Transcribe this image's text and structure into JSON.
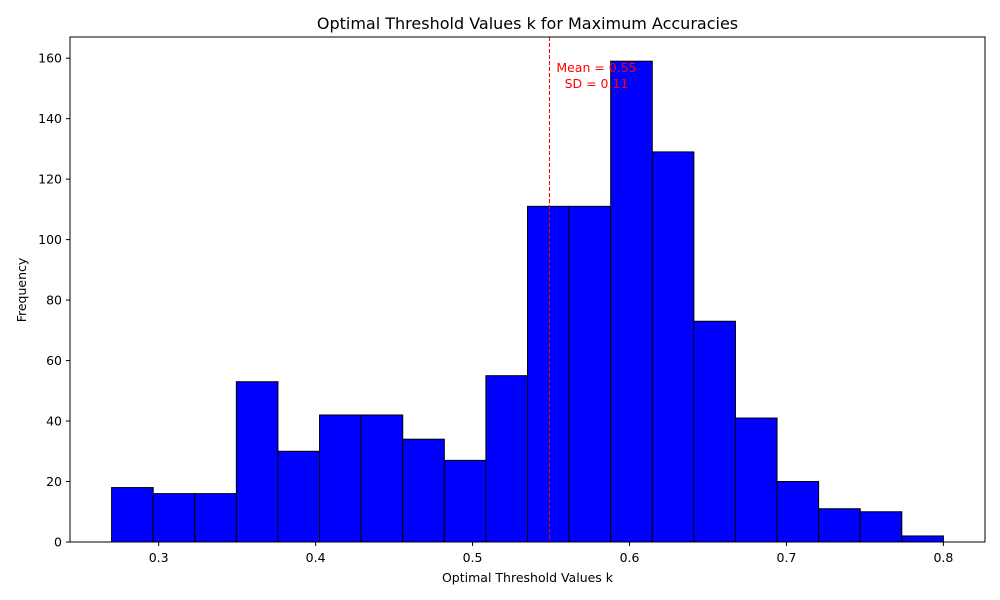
{
  "chart_data": {
    "type": "bar",
    "title": "Optimal Threshold Values k for Maximum Accuracies",
    "xlabel": "Optimal Threshold Values k",
    "ylabel": "Frequency",
    "bins": [
      {
        "x0": 0.27,
        "x1": 0.2965,
        "value": 18
      },
      {
        "x0": 0.2965,
        "x1": 0.323,
        "value": 16
      },
      {
        "x0": 0.323,
        "x1": 0.3495,
        "value": 16
      },
      {
        "x0": 0.3495,
        "x1": 0.376,
        "value": 53
      },
      {
        "x0": 0.376,
        "x1": 0.4025,
        "value": 30
      },
      {
        "x0": 0.4025,
        "x1": 0.429,
        "value": 42
      },
      {
        "x0": 0.429,
        "x1": 0.4555,
        "value": 42
      },
      {
        "x0": 0.4555,
        "x1": 0.482,
        "value": 34
      },
      {
        "x0": 0.482,
        "x1": 0.5085,
        "value": 27
      },
      {
        "x0": 0.5085,
        "x1": 0.535,
        "value": 55
      },
      {
        "x0": 0.535,
        "x1": 0.5615,
        "value": 111
      },
      {
        "x0": 0.5615,
        "x1": 0.588,
        "value": 111
      },
      {
        "x0": 0.588,
        "x1": 0.6145,
        "value": 159
      },
      {
        "x0": 0.6145,
        "x1": 0.641,
        "value": 129
      },
      {
        "x0": 0.641,
        "x1": 0.6675,
        "value": 73
      },
      {
        "x0": 0.6675,
        "x1": 0.694,
        "value": 41
      },
      {
        "x0": 0.694,
        "x1": 0.7205,
        "value": 20
      },
      {
        "x0": 0.7205,
        "x1": 0.747,
        "value": 11
      },
      {
        "x0": 0.747,
        "x1": 0.7735,
        "value": 10
      },
      {
        "x0": 0.7735,
        "x1": 0.8,
        "value": 2
      }
    ],
    "xlim": [
      0.2435,
      0.8265
    ],
    "ylim": [
      0,
      167
    ],
    "xticks": [
      {
        "value": 0.3,
        "label": "0.3"
      },
      {
        "value": 0.4,
        "label": "0.4"
      },
      {
        "value": 0.5,
        "label": "0.5"
      },
      {
        "value": 0.6,
        "label": "0.6"
      },
      {
        "value": 0.7,
        "label": "0.7"
      },
      {
        "value": 0.8,
        "label": "0.8"
      }
    ],
    "yticks": [
      {
        "value": 0,
        "label": "0"
      },
      {
        "value": 20,
        "label": "20"
      },
      {
        "value": 40,
        "label": "40"
      },
      {
        "value": 60,
        "label": "60"
      },
      {
        "value": 80,
        "label": "80"
      },
      {
        "value": 100,
        "label": "100"
      },
      {
        "value": 120,
        "label": "120"
      },
      {
        "value": 140,
        "label": "140"
      },
      {
        "value": 160,
        "label": "160"
      }
    ],
    "mean_line": {
      "value": 0.549,
      "color": "#ff0000",
      "style": "dashed",
      "label_lines": [
        "Mean = 0.55",
        "SD = 0.11"
      ]
    },
    "bar_color": "#0000ff",
    "edge_color": "#000000",
    "grid": false
  }
}
